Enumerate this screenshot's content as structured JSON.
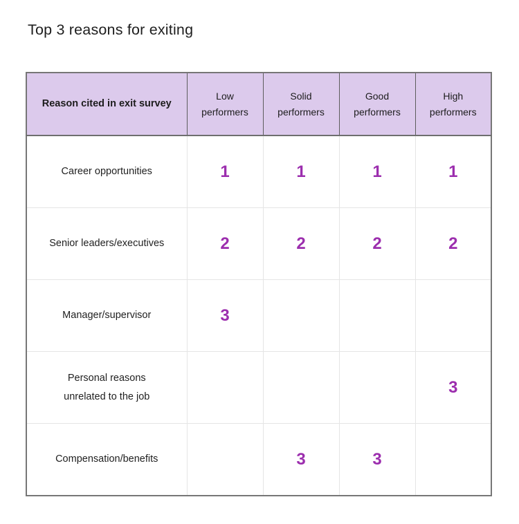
{
  "title": "Top 3 reasons for exiting",
  "colors": {
    "header_bg": "#dccaec",
    "rank_color": "#9c2eae",
    "outer_border": "#767676",
    "grid_line": "#e5e5e5",
    "text": "#1e1e1e"
  },
  "table": {
    "header": [
      "Reason cited in exit survey",
      "Low\nperformers",
      "Solid\nperformers",
      "Good\nperformers",
      "High\nperformers"
    ],
    "rows": [
      [
        "Career opportunities",
        "1",
        "1",
        "1",
        "1"
      ],
      [
        "Senior leaders/executives",
        "2",
        "2",
        "2",
        "2"
      ],
      [
        "Manager/supervisor",
        "3",
        "",
        "",
        ""
      ],
      [
        "Personal reasons\nunrelated to the job",
        "",
        "",
        "",
        "3"
      ],
      [
        "Compensation/benefits",
        "",
        "3",
        "3",
        ""
      ]
    ]
  },
  "chart_data": {
    "type": "table",
    "title": "Top 3 reasons for exiting",
    "columns": [
      "Reason cited in exit survey",
      "Low performers",
      "Solid performers",
      "Good performers",
      "High performers"
    ],
    "rows": [
      {
        "reason": "Career opportunities",
        "low": 1,
        "solid": 1,
        "good": 1,
        "high": 1
      },
      {
        "reason": "Senior leaders/executives",
        "low": 2,
        "solid": 2,
        "good": 2,
        "high": 2
      },
      {
        "reason": "Manager/supervisor",
        "low": 3,
        "solid": null,
        "good": null,
        "high": null
      },
      {
        "reason": "Personal reasons unrelated to the job",
        "low": null,
        "solid": null,
        "good": null,
        "high": 3
      },
      {
        "reason": "Compensation/benefits",
        "low": null,
        "solid": 3,
        "good": 3,
        "high": null
      }
    ],
    "value_meaning": "rank of reason (1-3) within each performer group; blank cell = not in top 3"
  }
}
